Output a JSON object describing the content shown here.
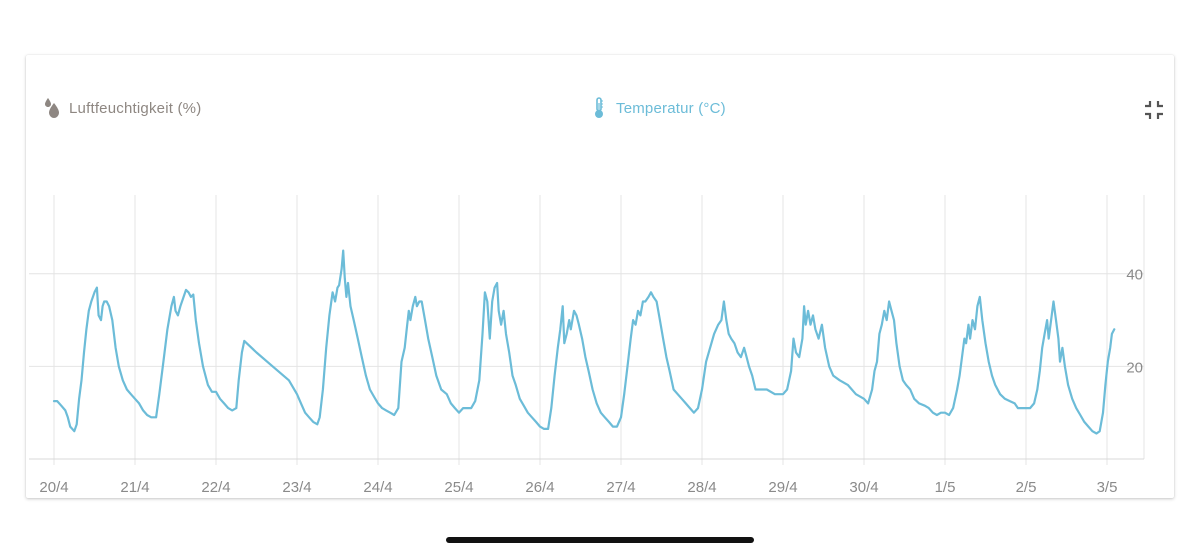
{
  "legend": {
    "humidity": {
      "label": "Luftfeuchtigkeit (%)",
      "icon": "water-drops-icon",
      "color": "#8e8782"
    },
    "temperature": {
      "label": "Temperatur (°C)",
      "icon": "thermometer-icon",
      "color": "#6cbcd8"
    }
  },
  "toolbar": {
    "collapse_icon": "collapse-icon"
  },
  "chart_data": {
    "type": "line",
    "title": "",
    "xlabel": "",
    "ylabel": "",
    "x_ticks": [
      "20/4",
      "21/4",
      "22/4",
      "23/4",
      "24/4",
      "25/4",
      "26/4",
      "27/4",
      "28/4",
      "29/4",
      "30/4",
      "1/5",
      "2/5",
      "3/5"
    ],
    "y_ticks": [
      20,
      40
    ],
    "ylim": [
      0,
      57
    ],
    "grid": true,
    "series": [
      {
        "name": "Temperatur (°C)",
        "color": "#6cbcd8",
        "points": [
          [
            0.0,
            12.5
          ],
          [
            0.04,
            12.5
          ],
          [
            0.09,
            11.5
          ],
          [
            0.14,
            10.5
          ],
          [
            0.17,
            9.0
          ],
          [
            0.2,
            7.0
          ],
          [
            0.25,
            6.0
          ],
          [
            0.28,
            7.5
          ],
          [
            0.31,
            13
          ],
          [
            0.34,
            17
          ],
          [
            0.37,
            23
          ],
          [
            0.4,
            28
          ],
          [
            0.43,
            32
          ],
          [
            0.46,
            34
          ],
          [
            0.5,
            36
          ],
          [
            0.53,
            37
          ],
          [
            0.55,
            31
          ],
          [
            0.58,
            30
          ],
          [
            0.6,
            33
          ],
          [
            0.62,
            34
          ],
          [
            0.65,
            34
          ],
          [
            0.68,
            33
          ],
          [
            0.72,
            30
          ],
          [
            0.76,
            24
          ],
          [
            0.8,
            20
          ],
          [
            0.85,
            17
          ],
          [
            0.9,
            15
          ],
          [
            0.95,
            14
          ],
          [
            1.0,
            13
          ],
          [
            1.05,
            12
          ],
          [
            1.1,
            10.5
          ],
          [
            1.15,
            9.5
          ],
          [
            1.2,
            9
          ],
          [
            1.26,
            9
          ],
          [
            1.3,
            14
          ],
          [
            1.35,
            21
          ],
          [
            1.4,
            28
          ],
          [
            1.45,
            33
          ],
          [
            1.48,
            35
          ],
          [
            1.5,
            32
          ],
          [
            1.53,
            31
          ],
          [
            1.56,
            33
          ],
          [
            1.6,
            35
          ],
          [
            1.63,
            36.5
          ],
          [
            1.66,
            36
          ],
          [
            1.69,
            35
          ],
          [
            1.72,
            35.5
          ],
          [
            1.75,
            30
          ],
          [
            1.79,
            25
          ],
          [
            1.84,
            20
          ],
          [
            1.9,
            16
          ],
          [
            1.95,
            14.5
          ],
          [
            2.0,
            14.5
          ],
          [
            2.05,
            13
          ],
          [
            2.1,
            12
          ],
          [
            2.15,
            11
          ],
          [
            2.2,
            10.5
          ],
          [
            2.25,
            11
          ],
          [
            2.28,
            17
          ],
          [
            2.32,
            23
          ],
          [
            2.35,
            25.5
          ],
          [
            2.5,
            23
          ],
          [
            2.7,
            20
          ],
          [
            2.9,
            17
          ],
          [
            3.0,
            14
          ],
          [
            3.05,
            12
          ],
          [
            3.1,
            10
          ],
          [
            3.15,
            9
          ],
          [
            3.2,
            8
          ],
          [
            3.25,
            7.5
          ],
          [
            3.28,
            9
          ],
          [
            3.32,
            15
          ],
          [
            3.36,
            24
          ],
          [
            3.4,
            31
          ],
          [
            3.44,
            36
          ],
          [
            3.47,
            34
          ],
          [
            3.5,
            37
          ],
          [
            3.52,
            37.5
          ],
          [
            3.55,
            41
          ],
          [
            3.57,
            45
          ],
          [
            3.59,
            39
          ],
          [
            3.61,
            35
          ],
          [
            3.63,
            38
          ],
          [
            3.66,
            33
          ],
          [
            3.7,
            30
          ],
          [
            3.75,
            26
          ],
          [
            3.8,
            22
          ],
          [
            3.85,
            18
          ],
          [
            3.9,
            15
          ],
          [
            3.95,
            13.5
          ],
          [
            4.0,
            12
          ],
          [
            4.05,
            11
          ],
          [
            4.1,
            10.5
          ],
          [
            4.15,
            10
          ],
          [
            4.2,
            9.5
          ],
          [
            4.25,
            11
          ],
          [
            4.29,
            21
          ],
          [
            4.33,
            24
          ],
          [
            4.36,
            29
          ],
          [
            4.38,
            32
          ],
          [
            4.4,
            30
          ],
          [
            4.43,
            33
          ],
          [
            4.46,
            35
          ],
          [
            4.48,
            33
          ],
          [
            4.51,
            34
          ],
          [
            4.54,
            34
          ],
          [
            4.58,
            30
          ],
          [
            4.62,
            26
          ],
          [
            4.67,
            22
          ],
          [
            4.72,
            18
          ],
          [
            4.78,
            15
          ],
          [
            4.85,
            14
          ],
          [
            4.9,
            12
          ],
          [
            4.95,
            11
          ],
          [
            5.0,
            10
          ],
          [
            5.05,
            11
          ],
          [
            5.1,
            11
          ],
          [
            5.15,
            11
          ],
          [
            5.2,
            12.5
          ],
          [
            5.25,
            17
          ],
          [
            5.29,
            27
          ],
          [
            5.32,
            36
          ],
          [
            5.35,
            34
          ],
          [
            5.38,
            26
          ],
          [
            5.41,
            34
          ],
          [
            5.44,
            37
          ],
          [
            5.47,
            38
          ],
          [
            5.49,
            32
          ],
          [
            5.52,
            29
          ],
          [
            5.55,
            32
          ],
          [
            5.58,
            27
          ],
          [
            5.62,
            23
          ],
          [
            5.66,
            18
          ],
          [
            5.7,
            16
          ],
          [
            5.75,
            13
          ],
          [
            5.8,
            11.5
          ],
          [
            5.85,
            10
          ],
          [
            5.9,
            9
          ],
          [
            5.95,
            8
          ],
          [
            6.0,
            7
          ],
          [
            6.05,
            6.5
          ],
          [
            6.1,
            6.5
          ],
          [
            6.14,
            11
          ],
          [
            6.18,
            18
          ],
          [
            6.22,
            24
          ],
          [
            6.25,
            28
          ],
          [
            6.28,
            33
          ],
          [
            6.3,
            25
          ],
          [
            6.33,
            27
          ],
          [
            6.36,
            30
          ],
          [
            6.38,
            28
          ],
          [
            6.4,
            30
          ],
          [
            6.42,
            32
          ],
          [
            6.45,
            31
          ],
          [
            6.48,
            29
          ],
          [
            6.52,
            26
          ],
          [
            6.56,
            22
          ],
          [
            6.6,
            19
          ],
          [
            6.65,
            15
          ],
          [
            6.7,
            12
          ],
          [
            6.75,
            10
          ],
          [
            6.8,
            9
          ],
          [
            6.85,
            8
          ],
          [
            6.9,
            7
          ],
          [
            6.95,
            7
          ],
          [
            7.0,
            9
          ],
          [
            7.04,
            14
          ],
          [
            7.08,
            20
          ],
          [
            7.12,
            26
          ],
          [
            7.15,
            30
          ],
          [
            7.18,
            29
          ],
          [
            7.21,
            32
          ],
          [
            7.24,
            31
          ],
          [
            7.27,
            34
          ],
          [
            7.3,
            34
          ],
          [
            7.34,
            35
          ],
          [
            7.37,
            36
          ],
          [
            7.4,
            35
          ],
          [
            7.44,
            34
          ],
          [
            7.48,
            30
          ],
          [
            7.52,
            26
          ],
          [
            7.56,
            22
          ],
          [
            7.6,
            19
          ],
          [
            7.65,
            15
          ],
          [
            7.7,
            14
          ],
          [
            7.75,
            13
          ],
          [
            7.8,
            12
          ],
          [
            7.85,
            11
          ],
          [
            7.9,
            10
          ],
          [
            7.95,
            11
          ],
          [
            8.0,
            15
          ],
          [
            8.05,
            21
          ],
          [
            8.1,
            24
          ],
          [
            8.15,
            27
          ],
          [
            8.2,
            29
          ],
          [
            8.24,
            30
          ],
          [
            8.27,
            34
          ],
          [
            8.3,
            30
          ],
          [
            8.33,
            27
          ],
          [
            8.36,
            26
          ],
          [
            8.4,
            25
          ],
          [
            8.44,
            23
          ],
          [
            8.48,
            22
          ],
          [
            8.52,
            24
          ],
          [
            8.55,
            22
          ],
          [
            8.58,
            20
          ],
          [
            8.62,
            18
          ],
          [
            8.66,
            15
          ],
          [
            8.72,
            15
          ],
          [
            8.8,
            15
          ],
          [
            8.9,
            14
          ],
          [
            9.0,
            14
          ],
          [
            9.05,
            15
          ],
          [
            9.1,
            19
          ],
          [
            9.13,
            26
          ],
          [
            9.16,
            23
          ],
          [
            9.2,
            22
          ],
          [
            9.24,
            26
          ],
          [
            9.26,
            33
          ],
          [
            9.28,
            29
          ],
          [
            9.31,
            32
          ],
          [
            9.34,
            29
          ],
          [
            9.37,
            31
          ],
          [
            9.4,
            28
          ],
          [
            9.44,
            26
          ],
          [
            9.48,
            29
          ],
          [
            9.52,
            24
          ],
          [
            9.57,
            20
          ],
          [
            9.62,
            18
          ],
          [
            9.7,
            17
          ],
          [
            9.8,
            16
          ],
          [
            9.9,
            14
          ],
          [
            10.0,
            13
          ],
          [
            10.05,
            12
          ],
          [
            10.1,
            15
          ],
          [
            10.13,
            19
          ],
          [
            10.16,
            21
          ],
          [
            10.19,
            27
          ],
          [
            10.22,
            29
          ],
          [
            10.25,
            32
          ],
          [
            10.28,
            30
          ],
          [
            10.31,
            34
          ],
          [
            10.34,
            32
          ],
          [
            10.37,
            30
          ],
          [
            10.4,
            25
          ],
          [
            10.44,
            20
          ],
          [
            10.48,
            17
          ],
          [
            10.52,
            16
          ],
          [
            10.57,
            15
          ],
          [
            10.62,
            13
          ],
          [
            10.68,
            12
          ],
          [
            10.75,
            11.5
          ],
          [
            10.8,
            11
          ],
          [
            10.85,
            10
          ],
          [
            10.9,
            9.5
          ],
          [
            10.95,
            10
          ],
          [
            11.0,
            10
          ],
          [
            11.05,
            9.5
          ],
          [
            11.1,
            11
          ],
          [
            11.15,
            15
          ],
          [
            11.18,
            18
          ],
          [
            11.21,
            22
          ],
          [
            11.24,
            26
          ],
          [
            11.26,
            25
          ],
          [
            11.29,
            29
          ],
          [
            11.31,
            26
          ],
          [
            11.34,
            30
          ],
          [
            11.37,
            28
          ],
          [
            11.4,
            33
          ],
          [
            11.43,
            35
          ],
          [
            11.46,
            30
          ],
          [
            11.5,
            25
          ],
          [
            11.54,
            21
          ],
          [
            11.58,
            18
          ],
          [
            11.62,
            16
          ],
          [
            11.68,
            14
          ],
          [
            11.74,
            13
          ],
          [
            11.8,
            12.5
          ],
          [
            11.86,
            12
          ],
          [
            11.9,
            11
          ],
          [
            11.95,
            11
          ],
          [
            12.0,
            11
          ],
          [
            12.05,
            11
          ],
          [
            12.1,
            12
          ],
          [
            12.14,
            15
          ],
          [
            12.17,
            19
          ],
          [
            12.2,
            24
          ],
          [
            12.23,
            27
          ],
          [
            12.26,
            30
          ],
          [
            12.28,
            26
          ],
          [
            12.31,
            30
          ],
          [
            12.34,
            34
          ],
          [
            12.37,
            30
          ],
          [
            12.4,
            26
          ],
          [
            12.42,
            21
          ],
          [
            12.45,
            24
          ],
          [
            12.48,
            20
          ],
          [
            12.52,
            16
          ],
          [
            12.57,
            13
          ],
          [
            12.62,
            11
          ],
          [
            12.67,
            9.5
          ],
          [
            12.72,
            8
          ],
          [
            12.77,
            7
          ],
          [
            12.82,
            6
          ],
          [
            12.87,
            5.5
          ],
          [
            12.91,
            6
          ],
          [
            12.95,
            10
          ],
          [
            12.98,
            16
          ],
          [
            13.01,
            21
          ],
          [
            13.04,
            24
          ],
          [
            13.06,
            27
          ],
          [
            13.09,
            28
          ]
        ]
      }
    ]
  }
}
